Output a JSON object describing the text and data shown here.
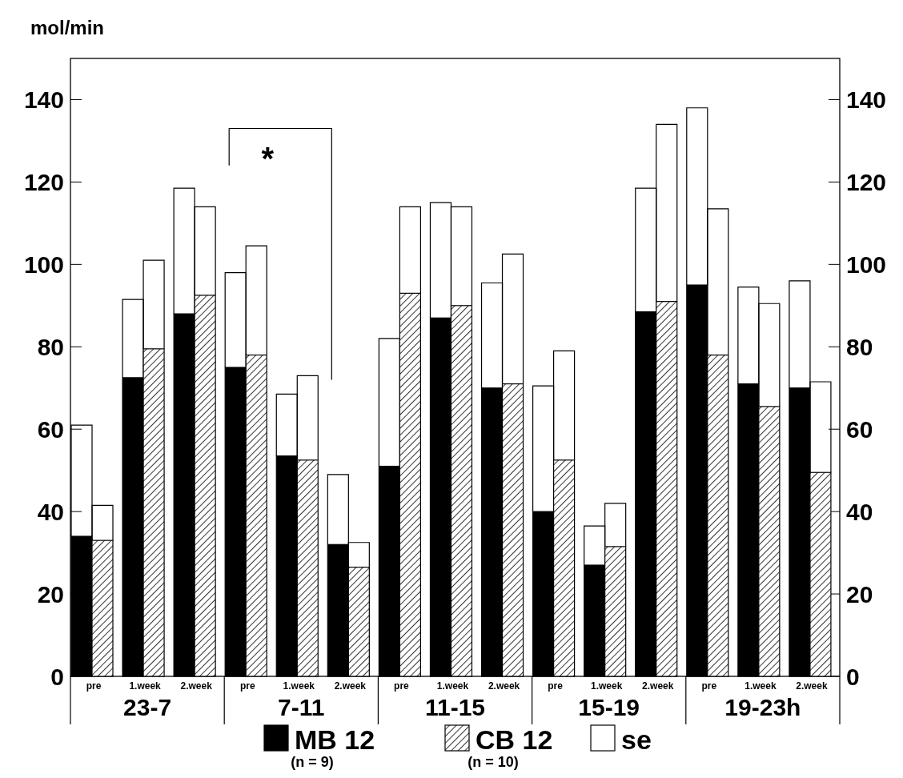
{
  "chart_data": {
    "type": "bar",
    "ylabel": "mol/min",
    "categories": [
      "pre",
      "1.week",
      "2.week",
      "pre",
      "1.week",
      "2.week",
      "pre",
      "1.week",
      "2.week",
      "pre",
      "1.week",
      "2.week",
      "pre",
      "1.week",
      "2.week"
    ],
    "series": [
      {
        "name": "MB 12",
        "color": "#000000",
        "values": [
          34,
          72.5,
          88,
          75,
          53.5,
          32,
          51,
          87,
          70,
          40,
          27,
          88.5,
          95,
          71,
          70
        ],
        "errors": [
          [
            34,
            61
          ],
          [
            72.5,
            91.5
          ],
          [
            88,
            118.5
          ],
          [
            75,
            98
          ],
          [
            53.5,
            68.5
          ],
          [
            32,
            49
          ],
          [
            51,
            82
          ],
          [
            87,
            115
          ],
          [
            70,
            95.5
          ],
          [
            40,
            70.5
          ],
          [
            27,
            36.5
          ],
          [
            88.5,
            118.5
          ],
          [
            95,
            138
          ],
          [
            71,
            94.5
          ],
          [
            70,
            96
          ]
        ]
      },
      {
        "name": "CB 12",
        "color": "#000000",
        "values": [
          33,
          79.5,
          92.5,
          78,
          52.5,
          26.5,
          93,
          90,
          71,
          52.5,
          31.5,
          91,
          78,
          65.5,
          49.5
        ],
        "errors": [
          [
            33,
            41.5
          ],
          [
            79.5,
            101
          ],
          [
            92.5,
            114
          ],
          [
            78,
            104.5
          ],
          [
            52.5,
            73
          ],
          [
            26.5,
            32.5
          ],
          [
            93,
            114
          ],
          [
            90,
            114
          ],
          [
            71,
            102.5
          ],
          [
            52.5,
            79
          ],
          [
            31.5,
            42
          ],
          [
            91,
            134
          ],
          [
            78,
            113.5
          ],
          [
            65.5,
            90.5
          ],
          [
            49.5,
            71.5
          ]
        ]
      },
      {
        "name": "se",
        "color": "#ffffff",
        "values": [
          null,
          null,
          null,
          null,
          null,
          null,
          null,
          null,
          null,
          null,
          null,
          null,
          null,
          null,
          null
        ]
      }
    ],
    "ylim": [
      0,
      150
    ],
    "yticks": [
      0,
      20,
      40,
      60,
      80,
      100,
      120,
      140
    ],
    "y2lim": [
      0,
      150
    ],
    "y2ticks": [
      0,
      20,
      40,
      60,
      80,
      100,
      120,
      140
    ],
    "legend": "bottom",
    "annotations": [
      "*",
      "(n = 9)",
      "(n = 10)",
      "23-7",
      "7-11",
      "11-15",
      "15-19",
      "19-23h"
    ]
  }
}
